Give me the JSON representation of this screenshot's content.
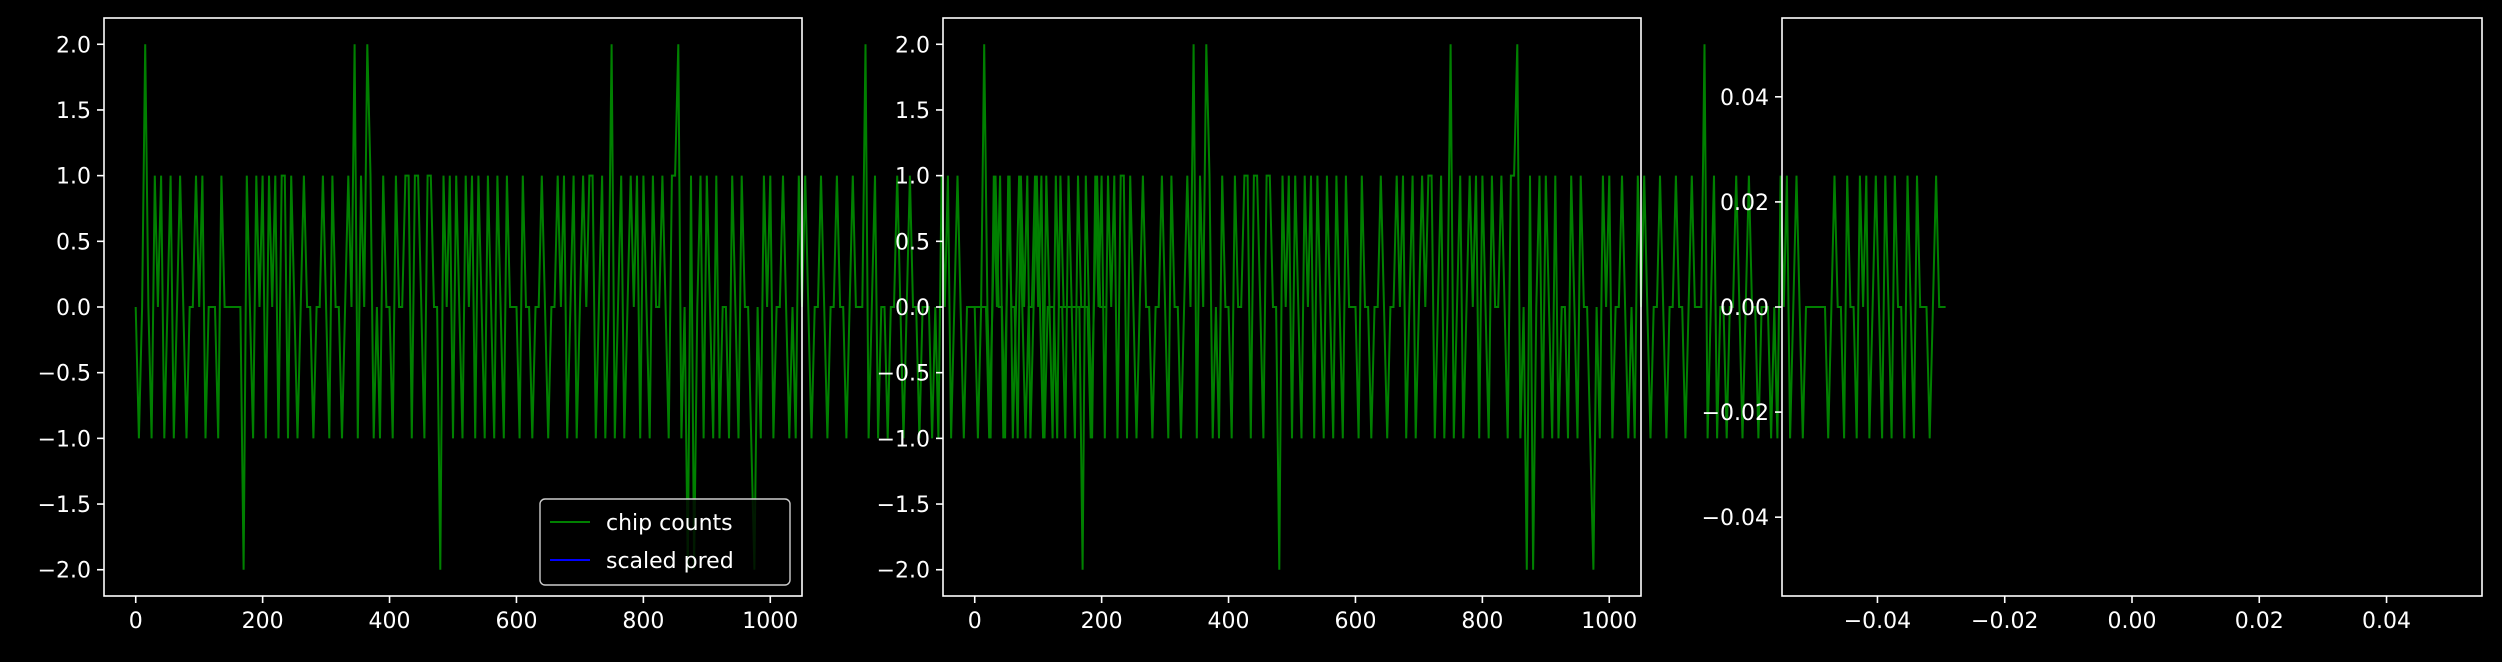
{
  "figure": {
    "background": "#000000",
    "foreground": "#ffffff"
  },
  "chart_data": [
    {
      "type": "line",
      "title": "",
      "xlabel": "",
      "ylabel": "",
      "xlim": [
        -50,
        1050
      ],
      "ylim": [
        -2.2,
        2.2
      ],
      "xticks": [
        0,
        200,
        400,
        600,
        800,
        1000
      ],
      "xtick_labels": [
        "0",
        "200",
        "400",
        "600",
        "800",
        "1000"
      ],
      "yticks": [
        2.0,
        1.5,
        1.0,
        0.5,
        0.0,
        -0.5,
        -1.0,
        -1.5,
        -2.0
      ],
      "ytick_labels": [
        "2.0",
        "1.5",
        "1.0",
        "0.5",
        "0.0",
        "−0.5",
        "−1.0",
        "−1.5",
        "−2.0"
      ],
      "grid": false,
      "legend": {
        "placement": "lower right",
        "entries": [
          "chip counts",
          "scaled pred"
        ]
      },
      "series": [
        {
          "name": "chip counts",
          "color": "#008000",
          "x_start": 0,
          "x_step": 5,
          "values": [
            0,
            -1,
            0,
            2,
            0,
            -1,
            1,
            0,
            1,
            -1,
            0,
            1,
            -1,
            0,
            1,
            0,
            -1,
            0,
            0,
            1,
            0,
            1,
            -1,
            0,
            0,
            0,
            -1,
            1,
            0,
            0,
            0,
            0,
            0,
            0,
            -2,
            1,
            0,
            -1,
            1,
            0,
            1,
            -1,
            1,
            0,
            1,
            -1,
            1,
            1,
            -1,
            1,
            0,
            -1,
            0,
            1,
            0,
            0,
            -1,
            0,
            0,
            1,
            0,
            -1,
            1,
            0,
            0,
            -1,
            0,
            1,
            0,
            2,
            -1,
            1,
            0,
            2,
            1,
            -1,
            0,
            -1,
            1,
            0,
            0,
            -1,
            1,
            0,
            0,
            1,
            1,
            -1,
            1,
            1,
            0,
            -1,
            1,
            1,
            0,
            0,
            -2,
            1,
            0,
            1,
            -1,
            1,
            0,
            -1,
            1,
            0,
            1,
            -1,
            1,
            0,
            -1,
            1,
            0,
            -1,
            1,
            0,
            -1,
            1,
            0,
            0,
            0,
            -1,
            1,
            0,
            0,
            -1,
            0,
            0,
            1,
            0,
            -1,
            0,
            0,
            1,
            0,
            1,
            -1,
            0,
            1,
            -1,
            0,
            1,
            0,
            1,
            1,
            -1,
            0,
            1,
            -1,
            0,
            2,
            -1,
            0,
            1,
            -1,
            0,
            1,
            0,
            1,
            -1,
            1,
            0,
            -1,
            1,
            0,
            0,
            1,
            0,
            -1,
            1,
            1,
            2,
            -1,
            0,
            -2,
            1,
            -2,
            0,
            1,
            -1,
            1,
            0,
            -1,
            1,
            -1,
            0,
            0,
            -1,
            1,
            0,
            -1,
            1,
            0,
            0,
            -1,
            -2,
            0,
            -1,
            1,
            0,
            1,
            -1,
            0,
            0,
            1,
            0,
            -1,
            0,
            -1,
            1,
            0,
            1,
            0,
            -1,
            0,
            0,
            1,
            0,
            -1,
            0,
            0,
            1,
            0,
            0,
            -1,
            0,
            1,
            0,
            0,
            0,
            2,
            -1,
            0,
            1,
            -1,
            0,
            0,
            -1,
            0,
            0,
            1,
            0,
            -1,
            0,
            1,
            0,
            0,
            -1,
            0,
            0,
            0,
            -1,
            0,
            -1,
            1,
            0,
            1,
            -1,
            0,
            1,
            0,
            -1,
            0,
            0,
            0,
            0,
            0,
            0,
            0,
            -1,
            0,
            1,
            0,
            0,
            -1,
            1,
            0,
            0,
            -1,
            1,
            0,
            1,
            -1,
            0,
            1,
            0,
            -1,
            1,
            0,
            -1,
            1,
            0,
            0,
            -1,
            1,
            0,
            -1,
            1,
            0,
            0,
            0,
            -1,
            0,
            1,
            0,
            0,
            0
          ]
        },
        {
          "name": "scaled pred",
          "color": "#0000ff",
          "values": []
        }
      ]
    },
    {
      "type": "line",
      "title": "",
      "xlabel": "",
      "ylabel": "",
      "xlim": [
        -50,
        1050
      ],
      "ylim": [
        -2.2,
        2.2
      ],
      "xticks": [
        0,
        200,
        400,
        600,
        800,
        1000
      ],
      "xtick_labels": [
        "0",
        "200",
        "400",
        "600",
        "800",
        "1000"
      ],
      "yticks": [
        2.0,
        1.5,
        1.0,
        0.5,
        0.0,
        -0.5,
        -1.0,
        -1.5,
        -2.0
      ],
      "ytick_labels": [
        "2.0",
        "1.5",
        "1.0",
        "0.5",
        "0.0",
        "−0.5",
        "−1.0",
        "−1.5",
        "−2.0"
      ],
      "grid": false,
      "series": [
        {
          "color": "#008000",
          "x_start": 0,
          "x_step": 5,
          "values": [
            0,
            -1,
            0,
            2,
            0,
            -1,
            1,
            0,
            1,
            -1,
            0,
            1,
            -1,
            0,
            1,
            0,
            -1,
            0,
            0,
            1,
            0,
            1,
            -1,
            0,
            0,
            0,
            -1,
            1,
            0,
            0,
            0,
            0,
            0,
            0,
            -2,
            1,
            0,
            -1,
            1,
            0,
            1,
            -1,
            1,
            0,
            1,
            -1,
            1,
            1,
            -1,
            1,
            0,
            -1,
            0,
            1,
            0,
            0,
            -1,
            0,
            0,
            1,
            0,
            -1,
            1,
            0,
            0,
            -1,
            0,
            1,
            0,
            2,
            -1,
            1,
            0,
            2,
            1,
            -1,
            0,
            -1,
            1,
            0,
            0,
            -1,
            1,
            0,
            0,
            1,
            1,
            -1,
            1,
            1,
            0,
            -1,
            1,
            1,
            0,
            0,
            -2,
            1,
            0,
            1,
            -1,
            1,
            0,
            -1,
            1,
            0,
            1,
            -1,
            1,
            0,
            -1,
            1,
            0,
            -1,
            1,
            0,
            -1,
            1,
            0,
            0,
            0,
            -1,
            1,
            0,
            0,
            -1,
            0,
            0,
            1,
            0,
            -1,
            0,
            0,
            1,
            0,
            1,
            -1,
            0,
            1,
            -1,
            0,
            1,
            0,
            1,
            1,
            -1,
            0,
            1,
            -1,
            0,
            2,
            -1,
            0,
            1,
            -1,
            0,
            1,
            0,
            1,
            -1,
            1,
            0,
            -1,
            1,
            0,
            0,
            1,
            0,
            -1,
            1,
            1,
            2,
            -1,
            0,
            -2,
            1,
            -2,
            0,
            1,
            -1,
            1,
            0,
            -1,
            1,
            -1,
            0,
            0,
            -1,
            1,
            0,
            -1,
            1,
            0,
            0,
            -1,
            -2,
            0,
            -1,
            1,
            0,
            1,
            -1,
            0,
            0,
            1,
            0,
            -1,
            0,
            -1,
            1,
            0,
            1,
            0,
            -1,
            0,
            0,
            1,
            0,
            -1,
            0,
            0,
            1,
            0,
            0,
            -1,
            0,
            1,
            0,
            0,
            0,
            2,
            -1,
            0,
            1,
            -1,
            0,
            0,
            -1,
            0,
            0,
            1,
            0,
            -1,
            0,
            1,
            0,
            0,
            -1,
            0,
            0,
            0,
            -1,
            0,
            -1,
            1,
            0,
            1,
            -1,
            0,
            1,
            0,
            -1,
            0,
            0,
            0,
            0,
            0,
            0,
            0,
            -1,
            0,
            1,
            0,
            0,
            -1,
            1,
            0,
            0,
            -1,
            1,
            0,
            1,
            -1,
            0,
            1,
            0,
            -1,
            1,
            0,
            -1,
            1,
            0,
            0,
            -1,
            1,
            0,
            -1,
            1,
            0,
            0,
            0,
            -1,
            0,
            1,
            0,
            0,
            0
          ]
        }
      ]
    },
    {
      "type": "line",
      "title": "",
      "xlabel": "",
      "ylabel": "",
      "xlim": [
        -0.055,
        0.055
      ],
      "ylim": [
        -0.055,
        0.055
      ],
      "xticks": [
        -0.04,
        -0.02,
        0.0,
        0.02,
        0.04
      ],
      "xtick_labels": [
        "−0.04",
        "−0.02",
        "0.00",
        "0.02",
        "0.04"
      ],
      "yticks": [
        0.04,
        0.02,
        0.0,
        -0.02,
        -0.04
      ],
      "ytick_labels": [
        "0.04",
        "0.02",
        "0.00",
        "−0.02",
        "−0.04"
      ],
      "grid": false,
      "series": []
    }
  ]
}
